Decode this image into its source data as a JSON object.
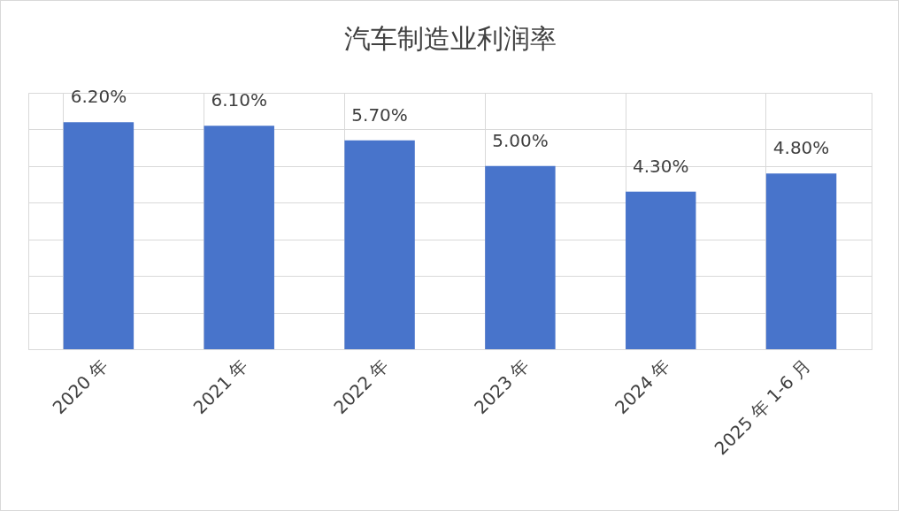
{
  "chart_data": {
    "type": "bar",
    "title": "汽车制造业利润率",
    "categories": [
      "2020 年",
      "2021 年",
      "2022 年",
      "2023 年",
      "2024 年",
      "2025 年 1-6 月"
    ],
    "values": [
      6.2,
      6.1,
      5.7,
      5.0,
      4.3,
      4.8
    ],
    "value_labels": [
      "6.20%",
      "6.10%",
      "5.70%",
      "5.00%",
      "4.30%",
      "4.80%"
    ],
    "color": "#4874cb",
    "ylim": [
      0,
      7
    ],
    "yticks": [
      {
        "value": 0,
        "label": null
      },
      {
        "value": 1,
        "label": null
      },
      {
        "value": 2,
        "label": null
      },
      {
        "value": 3,
        "label": null
      },
      {
        "value": 4,
        "label": null
      },
      {
        "value": 5,
        "label": null
      },
      {
        "value": 6,
        "label": null
      },
      {
        "value": 7,
        "label": null
      }
    ],
    "grid": true,
    "tick_labels": "x"
  }
}
